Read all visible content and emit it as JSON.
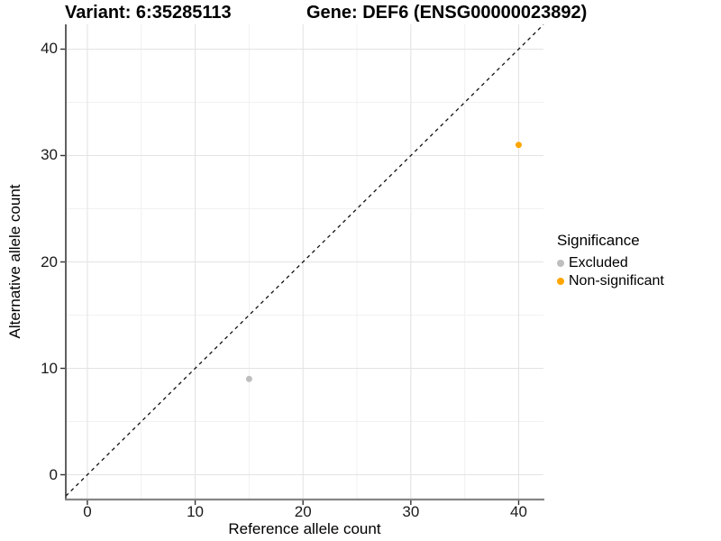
{
  "titles": {
    "variant": "Variant: 6:35285113",
    "gene": "Gene: DEF6 (ENSG00000023892)"
  },
  "axes": {
    "x_label": "Reference allele count",
    "y_label": "Alternative allele count"
  },
  "legend": {
    "title": "Significance",
    "items": [
      {
        "label": "Excluded",
        "color": "#BEBEBE"
      },
      {
        "label": "Non-significant",
        "color": "#FFA500"
      }
    ]
  },
  "chart_data": {
    "type": "scatter",
    "title": "Variant: 6:35285113 | Gene: DEF6 (ENSG00000023892)",
    "xlabel": "Reference allele count",
    "ylabel": "Alternative allele count",
    "xlim": [
      -2.0,
      42.3
    ],
    "ylim": [
      -2.33,
      42.33
    ],
    "x_ticks": [
      0,
      10,
      20,
      30,
      40
    ],
    "y_ticks": [
      0,
      10,
      20,
      30,
      40
    ],
    "x_minor_ticks": [
      5,
      15,
      25,
      35
    ],
    "y_minor_ticks": [
      5,
      15,
      25,
      35
    ],
    "grid": true,
    "legend_position": "right",
    "reference_line": {
      "type": "identity",
      "slope": 1,
      "intercept": 0,
      "style": "dashed",
      "color": "#111111"
    },
    "series": [
      {
        "name": "Excluded",
        "color": "#BEBEBE",
        "points": [
          {
            "x": 15,
            "y": 9
          }
        ]
      },
      {
        "name": "Non-significant",
        "color": "#FFA500",
        "points": [
          {
            "x": 40,
            "y": 31
          }
        ]
      }
    ]
  },
  "style_colors": {
    "grid_major": "#e3e3e3",
    "grid_minor": "#f1f1f1",
    "axis_line_y": "#2b2b2b",
    "axis_line_x": "#858585",
    "tick_mark": "#333333"
  }
}
